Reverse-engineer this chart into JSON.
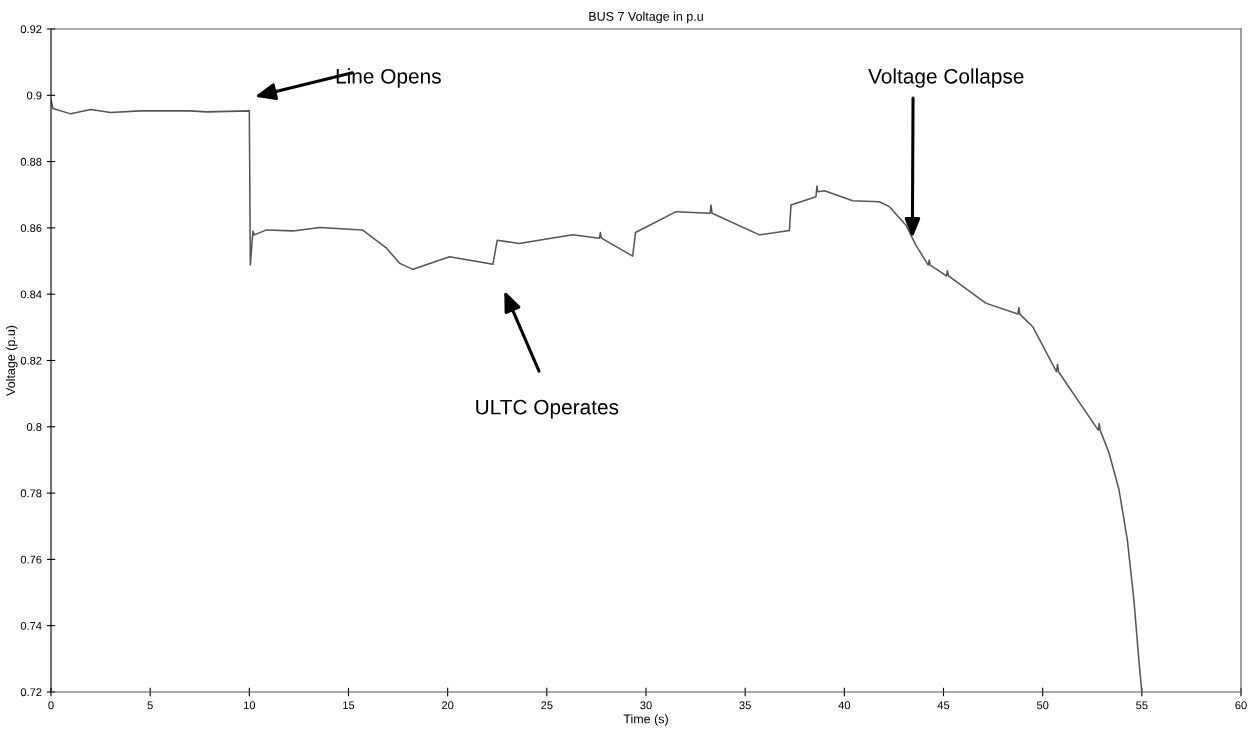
{
  "chart_data": {
    "type": "line",
    "title": "BUS 7 Voltage in p.u",
    "xlabel": "Time (s)",
    "ylabel": "Voltage (p.u)",
    "xlim": [
      0,
      60
    ],
    "ylim": [
      0.72,
      0.92
    ],
    "xticks": [
      0,
      5,
      10,
      15,
      20,
      25,
      30,
      35,
      40,
      45,
      50,
      55,
      60
    ],
    "yticks": [
      0.72,
      0.74,
      0.76,
      0.78,
      0.8,
      0.82,
      0.84,
      0.86,
      0.88,
      0.9,
      0.92
    ],
    "grid": false,
    "marker": "none",
    "line_style": "solid",
    "series": [
      {
        "color": "#555555",
        "x": [
          0,
          0.1,
          1,
          2,
          3,
          4.5,
          7,
          7.85,
          10.0,
          10.05,
          10.18,
          10.25,
          10.87,
          12.2,
          13.55,
          15.7,
          16.9,
          17.58,
          18.25,
          20.1,
          22.28,
          22.5,
          23.6,
          26.3,
          27.65,
          27.7,
          27.75,
          29.33,
          29.47,
          31.52,
          33.23,
          33.28,
          33.33,
          35.72,
          37.23,
          37.31,
          38.57,
          38.62,
          38.66,
          39.0,
          40.42,
          41.76,
          42.27,
          43.1,
          43.61,
          44.23,
          44.28,
          44.33,
          45.15,
          45.2,
          45.25,
          47.13,
          48.75,
          48.8,
          48.85,
          49.5,
          50.7,
          50.75,
          50.8,
          52.8,
          52.85,
          52.9,
          53.35,
          53.85,
          54.27,
          54.6,
          54.85,
          55.0
        ],
        "values": [
          0.8986,
          0.896,
          0.8944,
          0.8957,
          0.8948,
          0.8953,
          0.8953,
          0.895,
          0.8953,
          0.8488,
          0.859,
          0.8579,
          0.8594,
          0.8591,
          0.8601,
          0.8594,
          0.854,
          0.8493,
          0.8475,
          0.8513,
          0.849,
          0.8563,
          0.8553,
          0.8579,
          0.8569,
          0.8586,
          0.8569,
          0.8515,
          0.8586,
          0.8649,
          0.8644,
          0.8669,
          0.8644,
          0.8579,
          0.8592,
          0.8669,
          0.8694,
          0.8726,
          0.8709,
          0.8712,
          0.8682,
          0.8679,
          0.8664,
          0.8609,
          0.8548,
          0.8488,
          0.8503,
          0.8488,
          0.8455,
          0.8471,
          0.8455,
          0.8373,
          0.834,
          0.836,
          0.834,
          0.8302,
          0.8166,
          0.8189,
          0.8166,
          0.799,
          0.801,
          0.799,
          0.792,
          0.781,
          0.7659,
          0.7478,
          0.7297,
          0.72
        ]
      }
    ],
    "annotations": [
      "Line Opens",
      "ULTC Operates",
      {
        "text": "Voltage Collapse",
        "x": 43.43,
        "y": 0.857
      }
    ]
  }
}
